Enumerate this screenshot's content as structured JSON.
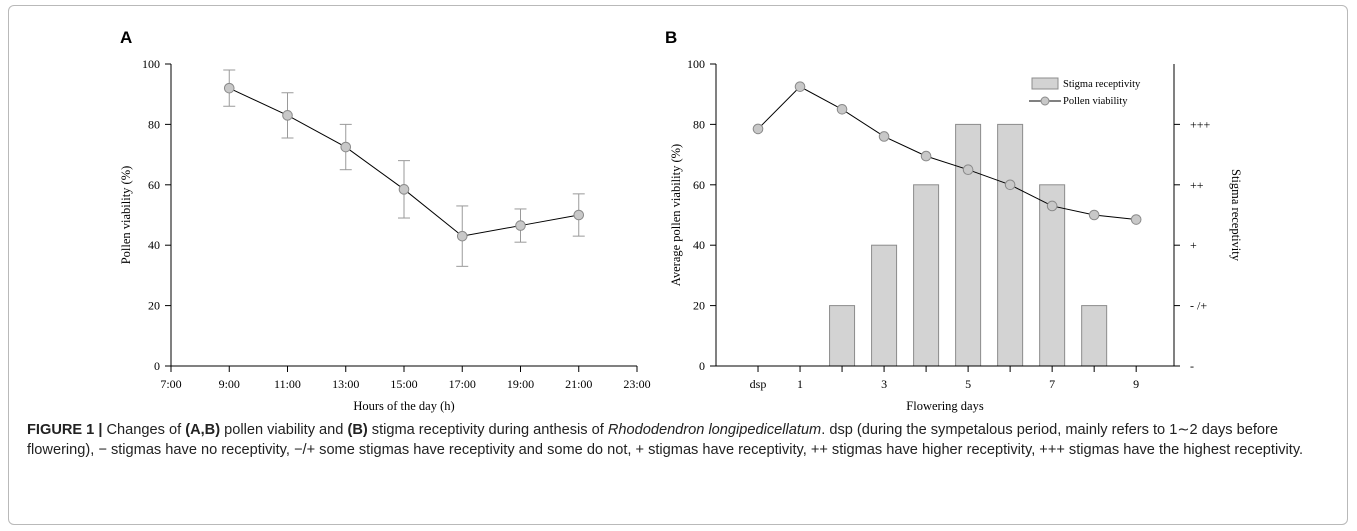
{
  "panels": {
    "a_label": "A",
    "b_label": "B"
  },
  "chart_data": [
    {
      "type": "line",
      "panel": "A",
      "xlabel": "Hours of the day (h)",
      "ylabel": "Pollen viability (%)",
      "xlim": [
        7,
        23
      ],
      "ylim": [
        0,
        100
      ],
      "x_ticks": [
        "7:00",
        "9:00",
        "11:00",
        "13:00",
        "15:00",
        "17:00",
        "19:00",
        "21:00",
        "23:00"
      ],
      "y_ticks": [
        "0",
        "20",
        "40",
        "60",
        "80",
        "100"
      ],
      "error_bars": true,
      "series": [
        {
          "x": [
            9,
            11,
            13,
            15,
            17,
            19,
            21
          ],
          "values": [
            92,
            83,
            72.5,
            58.5,
            43,
            46.5,
            50
          ],
          "errors": [
            6,
            7.5,
            7.5,
            9.5,
            10,
            5.5,
            7
          ]
        }
      ]
    },
    {
      "type": "bar",
      "panel": "B",
      "xlabel": "Flowering days",
      "ylabel": "Average pollen viability (%)",
      "y2label": "Stigma receptivity",
      "ylim": [
        0,
        100
      ],
      "x_tick_labels": [
        "dsp",
        "1",
        "3",
        "5",
        "7",
        "9"
      ],
      "y_ticks": [
        "0",
        "20",
        "40",
        "60",
        "80",
        "100"
      ],
      "y2_tick_labels": [
        "-",
        "- /+",
        "+",
        "++",
        "+++"
      ],
      "legend_position": "top-right",
      "series": [
        {
          "name": "Stigma receptivity",
          "type": "bar",
          "x": [
            2,
            3,
            4,
            5,
            6,
            7,
            8
          ],
          "values": [
            20,
            40,
            60,
            80,
            80,
            60,
            20
          ]
        },
        {
          "name": "Pollen viability",
          "type": "line",
          "x": [
            0,
            1,
            2,
            3,
            4,
            5,
            6,
            7,
            8,
            9
          ],
          "values": [
            78.5,
            92.5,
            85,
            76,
            69.5,
            65,
            60,
            53,
            50,
            48.5
          ]
        }
      ]
    }
  ],
  "caption": {
    "label": "FIGURE 1 |",
    "t1": " Changes of ",
    "b1": "(A,B)",
    "t2": " pollen viability and ",
    "b2": "(B)",
    "t3": " stigma receptivity during anthesis of ",
    "species": "Rhododendron longipedicellatum",
    "t4": ". dsp (during the sympetalous period, mainly refers to 1∼2 days before flowering), − stigmas have no receptivity, −/+ some stigmas have receptivity and some do not, + stigmas have receptivity, ++ stigmas have higher receptivity, +++ stigmas have the highest receptivity."
  }
}
